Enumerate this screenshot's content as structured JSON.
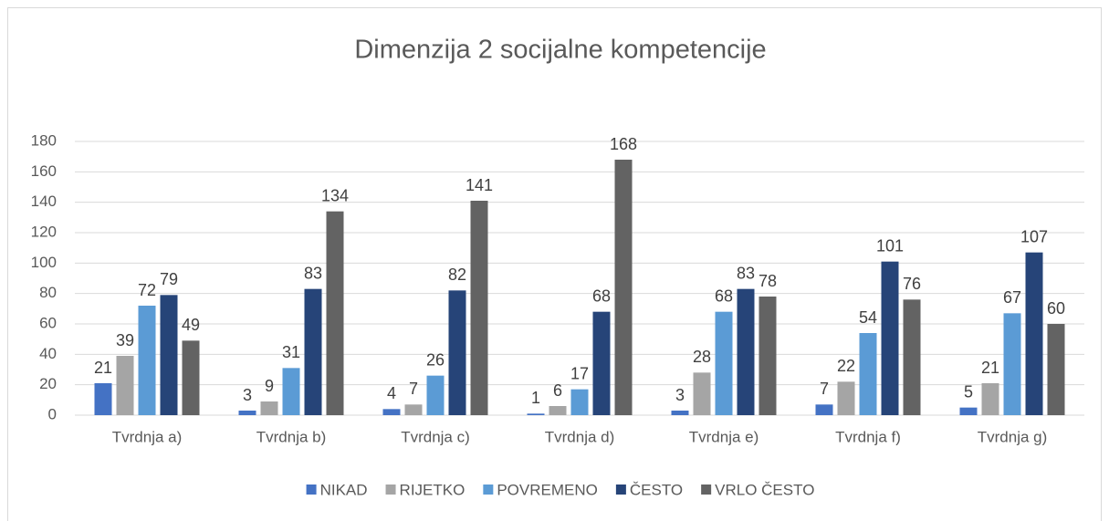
{
  "chart_data": {
    "type": "bar",
    "title": "Dimenzija 2 socijalne kompetencije",
    "categories": [
      "Tvrdnja a)",
      "Tvrdnja b)",
      "Tvrdnja c)",
      "Tvrdnja d)",
      "Tvrdnja e)",
      "Tvrdnja f)",
      "Tvrdnja g)"
    ],
    "series": [
      {
        "name": "NIKAD",
        "color": "#4472c4",
        "values": [
          21,
          3,
          4,
          1,
          3,
          7,
          5
        ]
      },
      {
        "name": "RIJETKO",
        "color": "#a5a5a5",
        "values": [
          39,
          9,
          7,
          6,
          28,
          22,
          21
        ]
      },
      {
        "name": "POVREMENO",
        "color": "#5b9bd5",
        "values": [
          72,
          31,
          26,
          17,
          68,
          54,
          67
        ]
      },
      {
        "name": "ČESTO",
        "color": "#264478",
        "values": [
          79,
          83,
          82,
          68,
          83,
          101,
          107
        ]
      },
      {
        "name": "VRLO ČESTO",
        "color": "#636363",
        "values": [
          49,
          134,
          141,
          168,
          78,
          76,
          60
        ]
      }
    ],
    "ylim": [
      0,
      180
    ],
    "yticks": [
      0,
      20,
      40,
      60,
      80,
      100,
      120,
      140,
      160,
      180
    ],
    "grid": true,
    "legend": "bottom"
  }
}
